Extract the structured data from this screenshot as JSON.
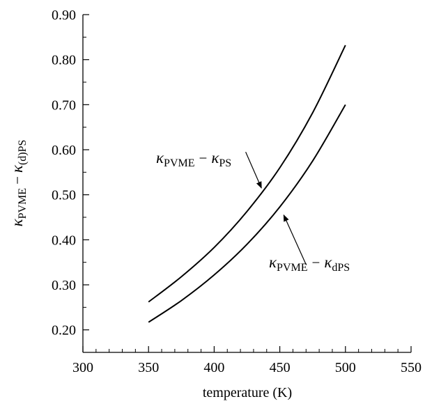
{
  "chart_data": {
    "type": "line",
    "xlabel": "temperature (K)",
    "ylabel": {
      "kappa1": "κ",
      "sub1": "PVME",
      "minus": "−",
      "kappa2": "κ",
      "sub2": "(d)PS"
    },
    "xlim": [
      300,
      550
    ],
    "ylim": [
      0.15,
      0.9
    ],
    "x_ticks": [
      300,
      350,
      400,
      450,
      500,
      550
    ],
    "x_tick_labels": [
      "300",
      "350",
      "400",
      "450",
      "500",
      "550"
    ],
    "y_ticks": [
      0.2,
      0.3,
      0.4,
      0.5,
      0.6,
      0.7,
      0.8,
      0.9
    ],
    "y_tick_labels": [
      "0.20",
      "0.30",
      "0.40",
      "0.50",
      "0.60",
      "0.70",
      "0.80",
      "0.90"
    ],
    "grid": false,
    "series": [
      {
        "name": "κPVME − κPS",
        "x": [
          350,
          375,
          400,
          425,
          450,
          475,
          500
        ],
        "values": [
          0.262,
          0.318,
          0.383,
          0.463,
          0.56,
          0.682,
          0.832
        ],
        "color": "#000000"
      },
      {
        "name": "κPVME − κdPS",
        "x": [
          350,
          375,
          400,
          425,
          450,
          475,
          500
        ],
        "values": [
          0.217,
          0.265,
          0.322,
          0.39,
          0.473,
          0.575,
          0.7
        ],
        "color": "#000000"
      }
    ],
    "annotations": [
      {
        "kappa1": "κ",
        "sub1": "PVME",
        "minus": "−",
        "kappa2": "κ",
        "sub2": "PS",
        "arrow_from": [
          424,
          0.595
        ],
        "arrow_to": [
          436,
          0.515
        ]
      },
      {
        "kappa1": "κ",
        "sub1": "PVME",
        "minus": "−",
        "kappa2": "κ",
        "sub2": "dPS",
        "arrow_from": [
          470,
          0.345
        ],
        "arrow_to": [
          453,
          0.455
        ]
      }
    ]
  }
}
